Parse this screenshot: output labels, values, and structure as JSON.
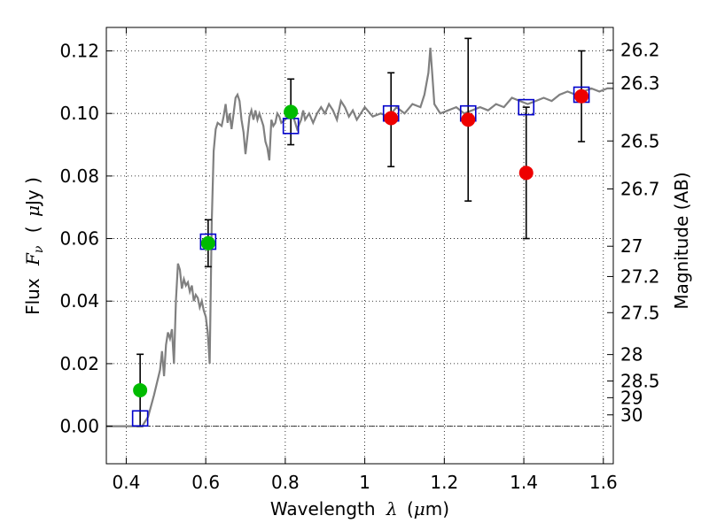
{
  "chart_data": {
    "type": "scatter",
    "title": "",
    "xlabel_text": "Wavelength",
    "xlabel_symbol": "λ",
    "xlabel_unit_open": "(",
    "xlabel_unit_symbol": "μ",
    "xlabel_unit_rest": "m)",
    "ylabel_text": "Flux",
    "ylabel_symbol": "F",
    "ylabel_sub": "ν",
    "ylabel_unit_open": "(",
    "ylabel_unit_symbol": "μ",
    "ylabel_unit_rest": "Jy )",
    "y2label": "Magnitude (AB)",
    "xlim": [
      0.35,
      1.625
    ],
    "ylim": [
      -0.012,
      0.1275
    ],
    "xticks": [
      0.4,
      0.6,
      0.8,
      1.0,
      1.2,
      1.4,
      1.6
    ],
    "xtick_labels": [
      "0.4",
      "0.6",
      "0.8",
      "1",
      "1.2",
      "1.4",
      "1.6"
    ],
    "yticks": [
      0.0,
      0.02,
      0.04,
      0.06,
      0.08,
      0.1,
      0.12
    ],
    "ytick_labels": [
      "0.00",
      "0.02",
      "0.04",
      "0.06",
      "0.08",
      "0.10",
      "0.12"
    ],
    "magnitude_ticks": [
      {
        "label": "26.2",
        "mag": 26.2
      },
      {
        "label": "26.3",
        "mag": 26.3
      },
      {
        "label": "26.5",
        "mag": 26.5
      },
      {
        "label": "26.7",
        "mag": 26.7
      },
      {
        "label": "27",
        "mag": 27.0
      },
      {
        "label": "27.2",
        "mag": 27.2
      },
      {
        "label": "27.5",
        "mag": 27.5
      },
      {
        "label": "28",
        "mag": 28.0
      },
      {
        "label": "28.5",
        "mag": 28.5
      },
      {
        "label": "29",
        "mag": 29.0
      },
      {
        "label": "30",
        "mag": 30.0
      }
    ],
    "grid": true,
    "zero_line": true,
    "colors": {
      "model_spectrum": "#808080",
      "green_points": "#00bb00",
      "red_points": "#ee0000",
      "model_boxes": "#0000cc",
      "error_bars": "#000000"
    },
    "series": [
      {
        "kind": "line",
        "points": [
          [
            0.35,
            0.0
          ],
          [
            0.44,
            0.0
          ],
          [
            0.455,
            0.003
          ],
          [
            0.47,
            0.01
          ],
          [
            0.485,
            0.018
          ],
          [
            0.49,
            0.024
          ],
          [
            0.495,
            0.016
          ],
          [
            0.5,
            0.026
          ],
          [
            0.505,
            0.03
          ],
          [
            0.51,
            0.028
          ],
          [
            0.515,
            0.031
          ],
          [
            0.52,
            0.02
          ],
          [
            0.525,
            0.04
          ],
          [
            0.53,
            0.052
          ],
          [
            0.535,
            0.05
          ],
          [
            0.54,
            0.044
          ],
          [
            0.545,
            0.047
          ],
          [
            0.55,
            0.045
          ],
          [
            0.555,
            0.046
          ],
          [
            0.56,
            0.043
          ],
          [
            0.565,
            0.045
          ],
          [
            0.57,
            0.04
          ],
          [
            0.575,
            0.042
          ],
          [
            0.58,
            0.041
          ],
          [
            0.585,
            0.038
          ],
          [
            0.59,
            0.04
          ],
          [
            0.595,
            0.037
          ],
          [
            0.6,
            0.035
          ],
          [
            0.605,
            0.03
          ],
          [
            0.61,
            0.02
          ],
          [
            0.615,
            0.065
          ],
          [
            0.62,
            0.088
          ],
          [
            0.625,
            0.095
          ],
          [
            0.63,
            0.097
          ],
          [
            0.64,
            0.096
          ],
          [
            0.645,
            0.099
          ],
          [
            0.65,
            0.103
          ],
          [
            0.655,
            0.097
          ],
          [
            0.66,
            0.1
          ],
          [
            0.665,
            0.095
          ],
          [
            0.67,
            0.1
          ],
          [
            0.675,
            0.105
          ],
          [
            0.68,
            0.106
          ],
          [
            0.685,
            0.104
          ],
          [
            0.69,
            0.098
          ],
          [
            0.695,
            0.094
          ],
          [
            0.7,
            0.087
          ],
          [
            0.705,
            0.093
          ],
          [
            0.71,
            0.099
          ],
          [
            0.715,
            0.101
          ],
          [
            0.72,
            0.098
          ],
          [
            0.725,
            0.101
          ],
          [
            0.73,
            0.098
          ],
          [
            0.735,
            0.1
          ],
          [
            0.74,
            0.098
          ],
          [
            0.745,
            0.096
          ],
          [
            0.75,
            0.091
          ],
          [
            0.755,
            0.089
          ],
          [
            0.76,
            0.085
          ],
          [
            0.765,
            0.098
          ],
          [
            0.77,
            0.096
          ],
          [
            0.775,
            0.097
          ],
          [
            0.78,
            0.1
          ],
          [
            0.785,
            0.099
          ],
          [
            0.79,
            0.097
          ],
          [
            0.8,
            0.098
          ],
          [
            0.81,
            0.1
          ],
          [
            0.82,
            0.099
          ],
          [
            0.83,
            0.095
          ],
          [
            0.84,
            0.098
          ],
          [
            0.845,
            0.101
          ],
          [
            0.85,
            0.098
          ],
          [
            0.86,
            0.1
          ],
          [
            0.87,
            0.097
          ],
          [
            0.88,
            0.1
          ],
          [
            0.89,
            0.102
          ],
          [
            0.9,
            0.1
          ],
          [
            0.91,
            0.103
          ],
          [
            0.92,
            0.101
          ],
          [
            0.93,
            0.098
          ],
          [
            0.94,
            0.104
          ],
          [
            0.95,
            0.102
          ],
          [
            0.96,
            0.099
          ],
          [
            0.97,
            0.101
          ],
          [
            0.98,
            0.098
          ],
          [
            0.99,
            0.1
          ],
          [
            1.0,
            0.102
          ],
          [
            1.02,
            0.099
          ],
          [
            1.04,
            0.1
          ],
          [
            1.06,
            0.099
          ],
          [
            1.08,
            0.102
          ],
          [
            1.1,
            0.1
          ],
          [
            1.12,
            0.103
          ],
          [
            1.14,
            0.102
          ],
          [
            1.15,
            0.106
          ],
          [
            1.16,
            0.113
          ],
          [
            1.165,
            0.121
          ],
          [
            1.17,
            0.112
          ],
          [
            1.175,
            0.103
          ],
          [
            1.19,
            0.1
          ],
          [
            1.21,
            0.101
          ],
          [
            1.23,
            0.102
          ],
          [
            1.25,
            0.1
          ],
          [
            1.27,
            0.101
          ],
          [
            1.29,
            0.102
          ],
          [
            1.31,
            0.101
          ],
          [
            1.33,
            0.103
          ],
          [
            1.35,
            0.102
          ],
          [
            1.37,
            0.105
          ],
          [
            1.39,
            0.104
          ],
          [
            1.41,
            0.103
          ],
          [
            1.43,
            0.104
          ],
          [
            1.45,
            0.105
          ],
          [
            1.47,
            0.104
          ],
          [
            1.49,
            0.106
          ],
          [
            1.51,
            0.107
          ],
          [
            1.53,
            0.106
          ],
          [
            1.55,
            0.107
          ],
          [
            1.57,
            0.108
          ],
          [
            1.59,
            0.107
          ],
          [
            1.61,
            0.108
          ],
          [
            1.625,
            0.108
          ]
        ]
      },
      {
        "kind": "errorbars",
        "points": [
          {
            "x": 0.435,
            "low": 0.0,
            "high": 0.023
          },
          {
            "x": 0.606,
            "low": 0.051,
            "high": 0.066
          },
          {
            "x": 0.814,
            "low": 0.09,
            "high": 0.111
          },
          {
            "x": 1.066,
            "low": 0.083,
            "high": 0.113
          },
          {
            "x": 1.26,
            "low": 0.072,
            "high": 0.124
          },
          {
            "x": 1.406,
            "low": 0.06,
            "high": 0.102
          },
          {
            "x": 1.545,
            "low": 0.091,
            "high": 0.12
          }
        ]
      },
      {
        "kind": "squares",
        "points": [
          [
            0.435,
            0.0025
          ],
          [
            0.606,
            0.059
          ],
          [
            0.814,
            0.096
          ],
          [
            1.066,
            0.1
          ],
          [
            1.26,
            0.1
          ],
          [
            1.406,
            0.102
          ],
          [
            1.545,
            0.106
          ]
        ]
      },
      {
        "kind": "green_points",
        "points": [
          [
            0.435,
            0.0115
          ],
          [
            0.606,
            0.0585
          ],
          [
            0.814,
            0.1005
          ]
        ]
      },
      {
        "kind": "red_points",
        "points": [
          [
            1.066,
            0.0985
          ],
          [
            1.26,
            0.098
          ],
          [
            1.406,
            0.081
          ],
          [
            1.545,
            0.1055
          ]
        ]
      }
    ]
  }
}
